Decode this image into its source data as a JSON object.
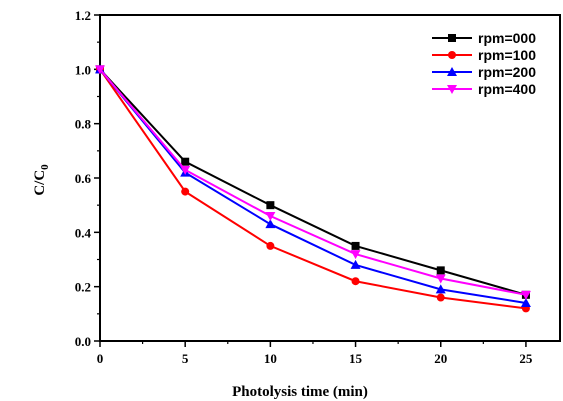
{
  "chart_data": {
    "type": "line",
    "xlabel": "Photolysis time (min)",
    "ylabel_main": "C/C",
    "ylabel_sub": "0",
    "xlim": [
      0,
      27
    ],
    "ylim": [
      0,
      1.2
    ],
    "xticks": [
      0,
      5,
      10,
      15,
      20,
      25
    ],
    "xtick_labels": [
      "0",
      "5",
      "10",
      "15",
      "20",
      "25"
    ],
    "yticks": [
      0,
      0.2,
      0.4,
      0.6,
      0.8,
      1.0,
      1.2
    ],
    "ytick_labels": [
      "0.0",
      "0.2",
      "0.4",
      "0.6",
      "0.8",
      "1.0",
      "1.2"
    ],
    "grid": false,
    "legend_position": "top-right",
    "series": [
      {
        "name": "rpm=000",
        "color": "#000000",
        "marker": "square",
        "x": [
          0,
          5,
          10,
          15,
          20,
          25
        ],
        "y": [
          1.0,
          0.66,
          0.5,
          0.35,
          0.26,
          0.17
        ]
      },
      {
        "name": "rpm=100",
        "color": "#ff0000",
        "marker": "circle",
        "x": [
          0,
          5,
          10,
          15,
          20,
          25
        ],
        "y": [
          1.0,
          0.55,
          0.35,
          0.22,
          0.16,
          0.12
        ]
      },
      {
        "name": "rpm=200",
        "color": "#0000ff",
        "marker": "triangle-up",
        "x": [
          0,
          5,
          10,
          15,
          20,
          25
        ],
        "y": [
          1.0,
          0.62,
          0.43,
          0.28,
          0.19,
          0.14
        ]
      },
      {
        "name": "rpm=400",
        "color": "#ff00ff",
        "marker": "triangle-down",
        "x": [
          0,
          5,
          10,
          15,
          20,
          25
        ],
        "y": [
          1.0,
          0.63,
          0.46,
          0.32,
          0.23,
          0.17
        ]
      }
    ]
  }
}
